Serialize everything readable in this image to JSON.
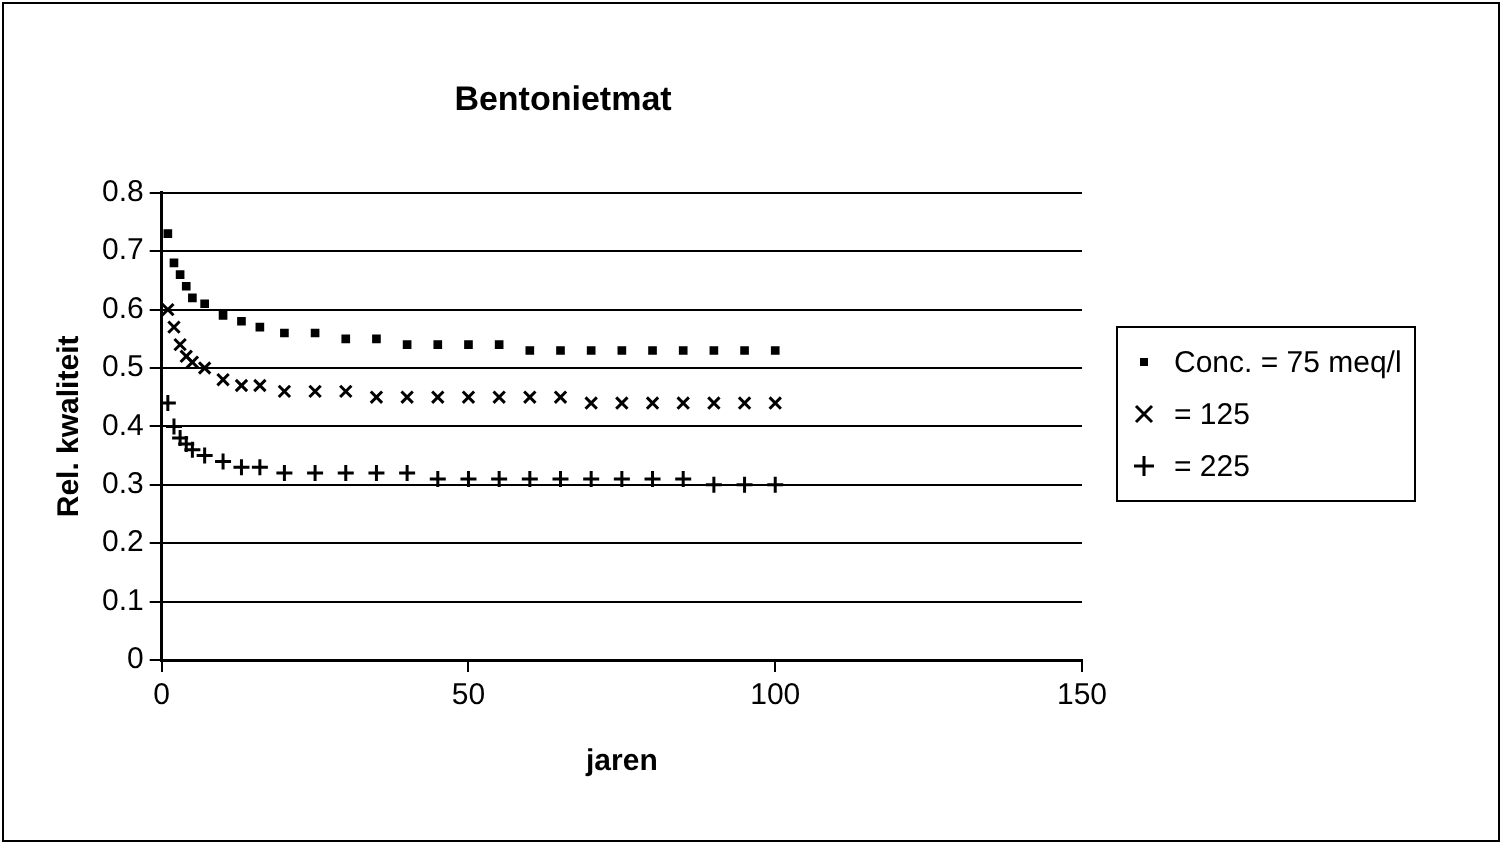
{
  "chart_data": {
    "type": "scatter",
    "title": "Bentonietmat",
    "xlabel": "jaren",
    "ylabel": "Rel. kwaliteit",
    "x": [
      1,
      2,
      3,
      4,
      5,
      7,
      10,
      13,
      16,
      20,
      25,
      30,
      35,
      40,
      45,
      50,
      55,
      60,
      65,
      70,
      75,
      80,
      85,
      90,
      95,
      100
    ],
    "series": [
      {
        "name": "Conc. = 75 meq/l",
        "color": "#000000",
        "marker": "square",
        "values": [
          0.73,
          0.68,
          0.66,
          0.64,
          0.62,
          0.61,
          0.59,
          0.58,
          0.57,
          0.56,
          0.56,
          0.55,
          0.55,
          0.54,
          0.54,
          0.54,
          0.54,
          0.53,
          0.53,
          0.53,
          0.53,
          0.53,
          0.53,
          0.53,
          0.53,
          0.53
        ]
      },
      {
        "name": "= 125",
        "color": "#000000",
        "marker": "cross",
        "values": [
          0.6,
          0.57,
          0.54,
          0.52,
          0.51,
          0.5,
          0.48,
          0.47,
          0.47,
          0.46,
          0.46,
          0.46,
          0.45,
          0.45,
          0.45,
          0.45,
          0.45,
          0.45,
          0.45,
          0.44,
          0.44,
          0.44,
          0.44,
          0.44,
          0.44,
          0.44
        ]
      },
      {
        "name": "= 225",
        "color": "#000000",
        "marker": "plus",
        "values": [
          0.44,
          0.4,
          0.38,
          0.37,
          0.36,
          0.35,
          0.34,
          0.33,
          0.33,
          0.32,
          0.32,
          0.32,
          0.32,
          0.32,
          0.31,
          0.31,
          0.31,
          0.31,
          0.31,
          0.31,
          0.31,
          0.31,
          0.31,
          0.3,
          0.3,
          0.3
        ]
      }
    ],
    "xlim": [
      0,
      150
    ],
    "xticks": [
      0,
      50,
      100,
      150
    ],
    "ylim": [
      0,
      0.8
    ],
    "yticks": [
      0,
      0.1,
      0.2,
      0.3,
      0.4,
      0.5,
      0.6,
      0.7,
      0.8
    ],
    "grid": "y",
    "legend": "right"
  }
}
